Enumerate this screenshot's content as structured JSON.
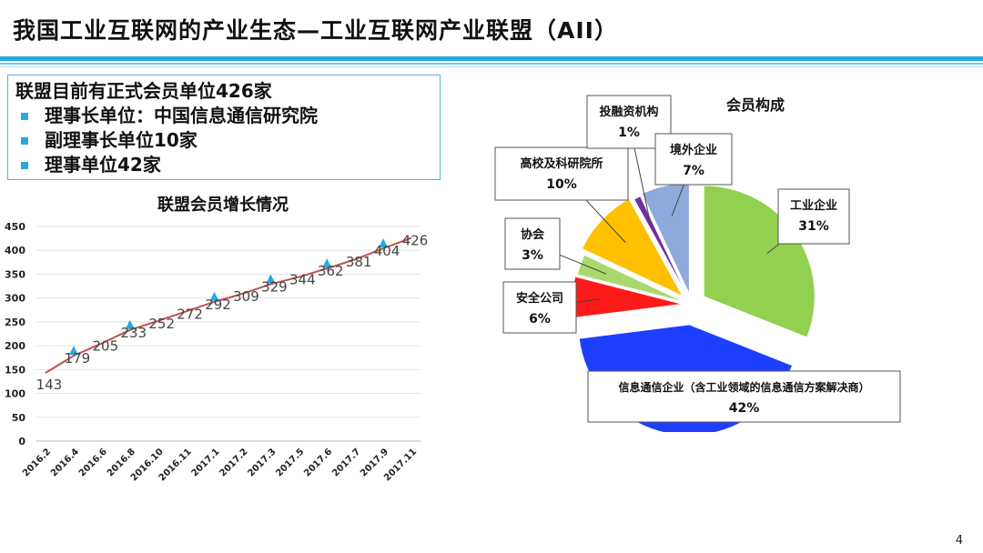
{
  "slide": {
    "title": "我国工业互联网的产业生态—工业互联网产业联盟（AII）",
    "page_number": "4"
  },
  "info": {
    "headline": "联盟目前有正式会员单位426家",
    "bullets": [
      "理事长单位：中国信息通信研究院",
      "副理事长单位10家",
      "理事单位42家"
    ]
  },
  "colors": {
    "accent": "#29a8de",
    "line": "#c0504d",
    "marker": "#29a8de"
  },
  "chart_data": [
    {
      "type": "line",
      "title": "联盟会员增长情况",
      "categories": [
        "2016.2",
        "2016.4",
        "2016.6",
        "2016.8",
        "2016.10",
        "2016.11",
        "2017.1",
        "2017.2",
        "2017.3",
        "2017.5",
        "2017.6",
        "2017.7",
        "2017.9",
        "2017.11"
      ],
      "values": [
        143,
        179,
        205,
        233,
        252,
        272,
        292,
        309,
        329,
        344,
        362,
        381,
        404,
        426
      ],
      "ylim": [
        0,
        450
      ],
      "yticks": [
        0,
        50,
        100,
        150,
        200,
        250,
        300,
        350,
        400,
        450
      ],
      "markers": [
        {
          "x": "2016.4",
          "y": 179
        },
        {
          "x": "2016.8",
          "y": 233
        },
        {
          "x": "2017.1",
          "y": 292
        },
        {
          "x": "2017.3",
          "y": 329
        },
        {
          "x": "2017.6",
          "y": 362
        },
        {
          "x": "2017.9",
          "y": 404
        }
      ],
      "xlabel": "",
      "ylabel": "",
      "grid": true
    },
    {
      "type": "pie",
      "title": "会员构成",
      "slices": [
        {
          "label": "工业企业",
          "value": 31,
          "pct": "31%",
          "color": "#92d050"
        },
        {
          "label": "信息通信企业（含工业领域的信息通信方案解决商）",
          "value": 42,
          "pct": "42%",
          "color": "#1f3fff"
        },
        {
          "label": "安全公司",
          "value": 6,
          "pct": "6%",
          "color": "#ff1a1a"
        },
        {
          "label": "协会",
          "value": 3,
          "pct": "3%",
          "color": "#a9d86e"
        },
        {
          "label": "高校及科研院所",
          "value": 10,
          "pct": "10%",
          "color": "#ffc000"
        },
        {
          "label": "投融资机构",
          "value": 1,
          "pct": "1%",
          "color": "#7030a0"
        },
        {
          "label": "境外企业",
          "value": 7,
          "pct": "7%",
          "color": "#8ea9db"
        }
      ]
    }
  ]
}
